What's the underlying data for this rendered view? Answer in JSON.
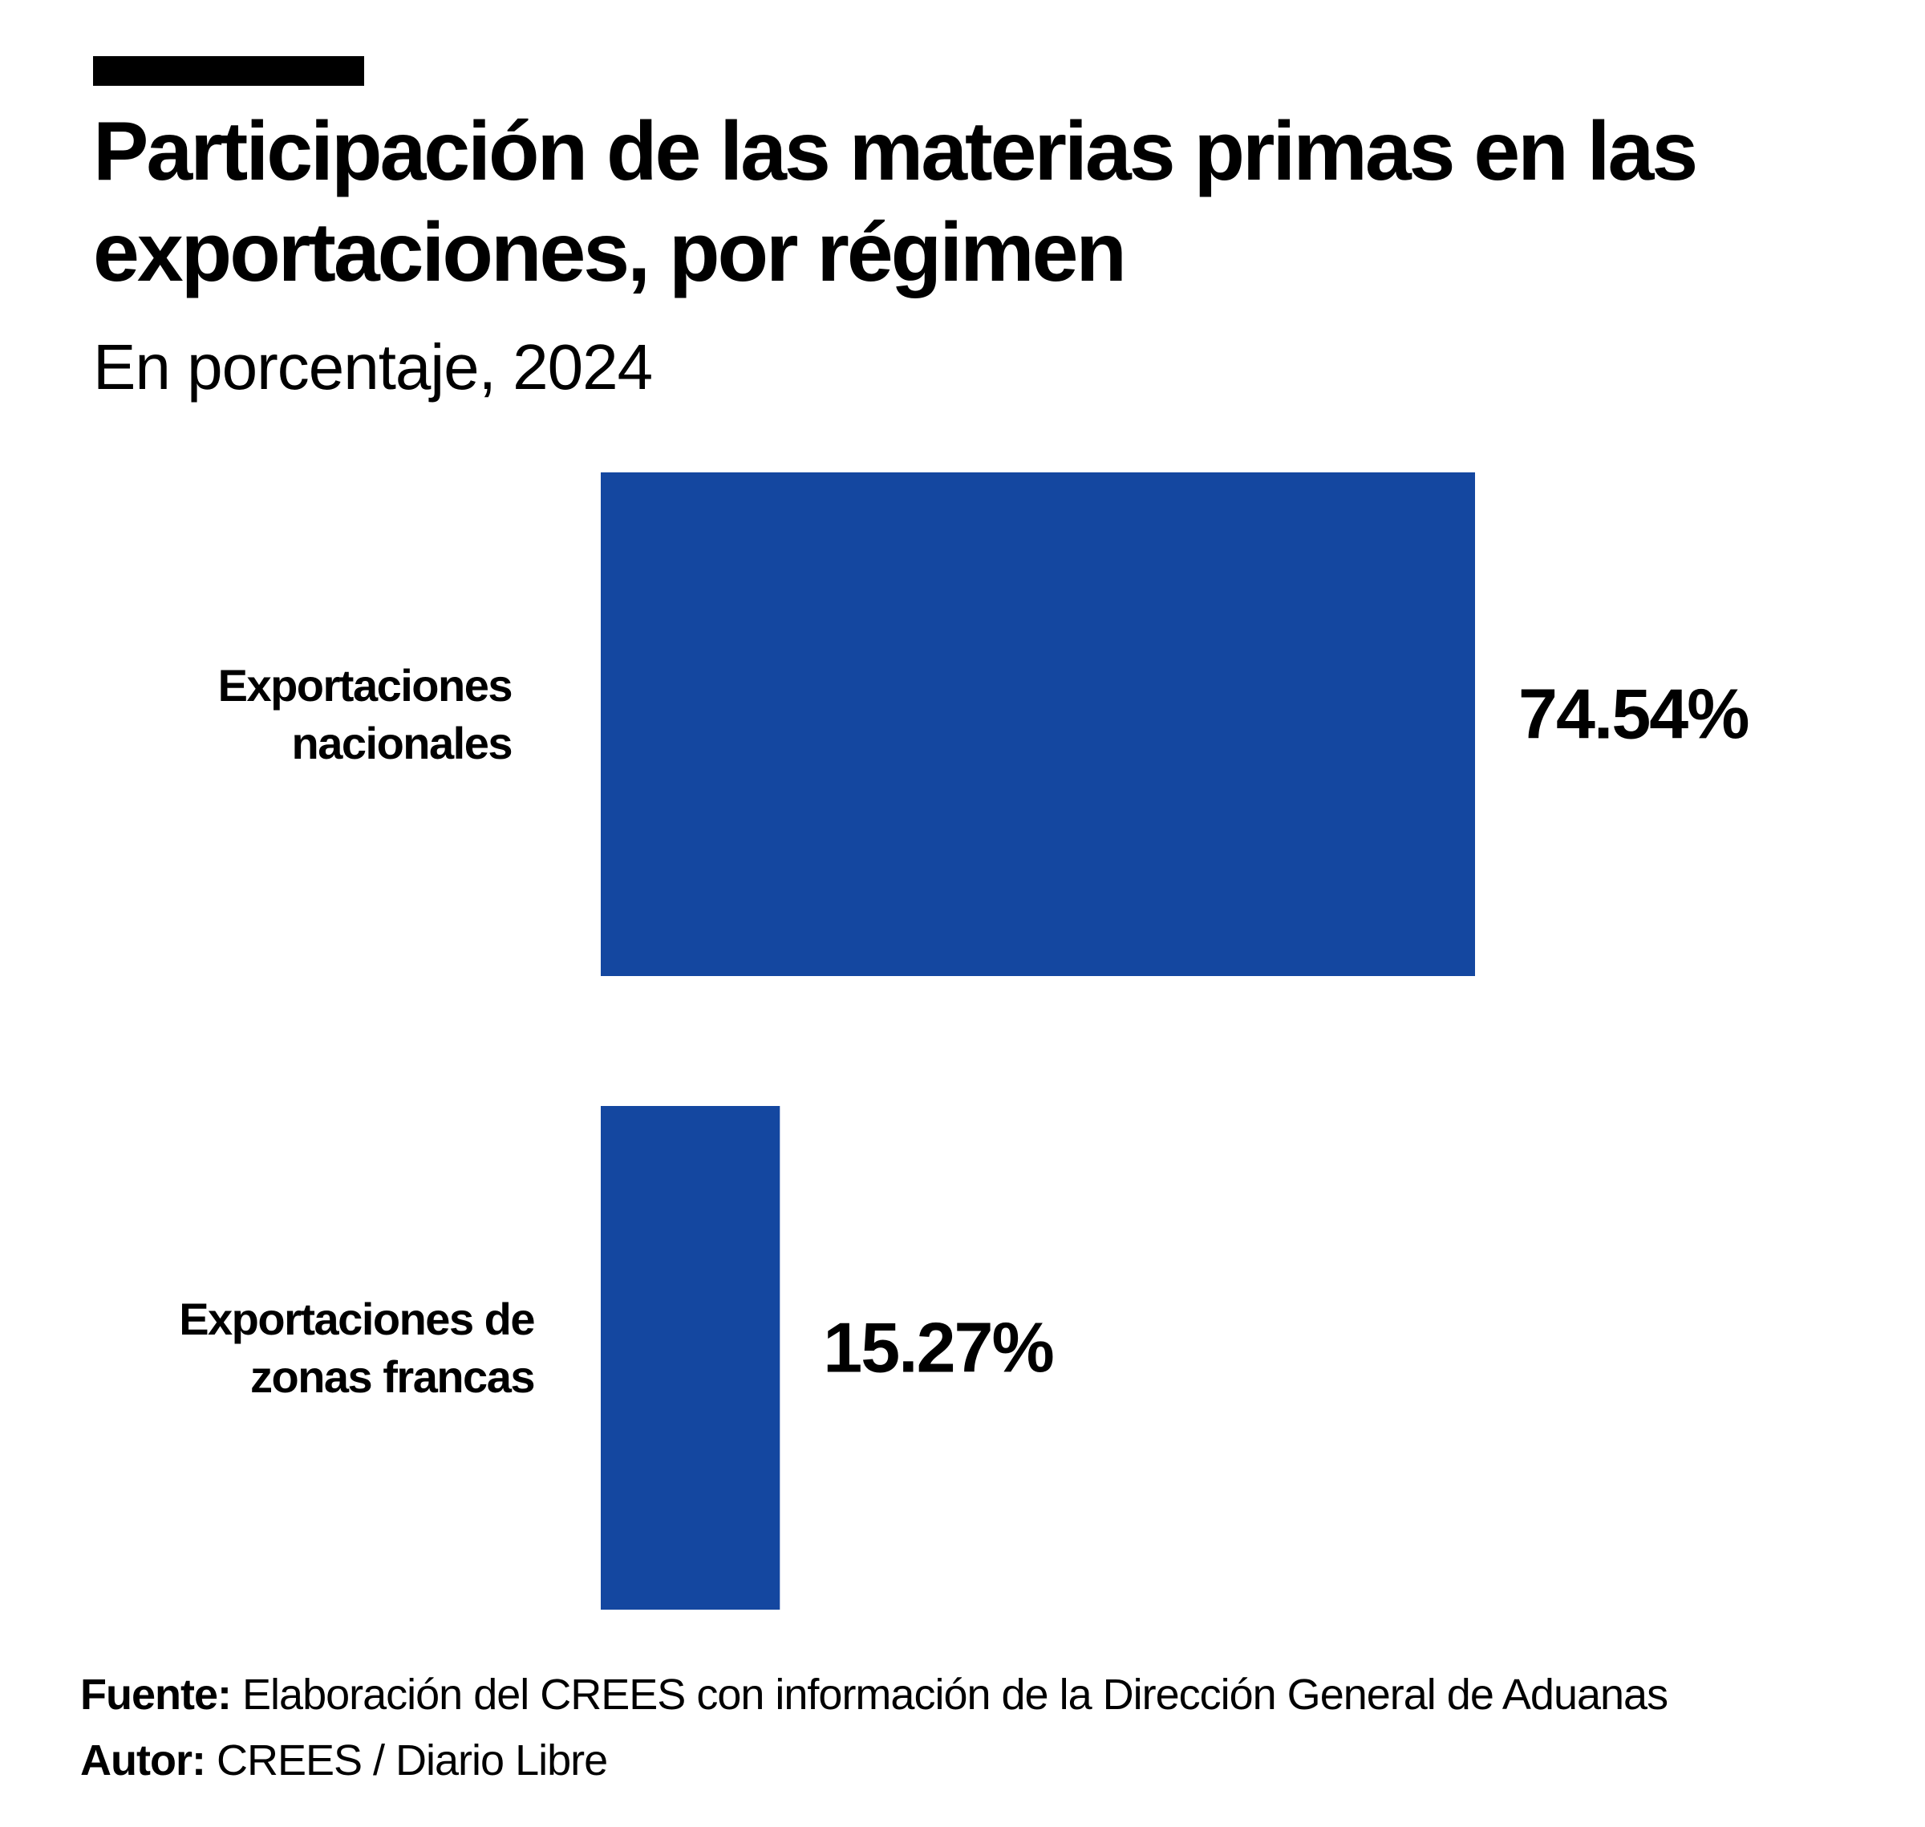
{
  "header": {
    "title": "Participación de las materias primas en las exportaciones, por régimen",
    "subtitle": "En porcentaje, 2024"
  },
  "chart_data": {
    "type": "bar",
    "orientation": "horizontal",
    "title": "Participación de las materias primas en las exportaciones, por régimen",
    "subtitle": "En porcentaje, 2024",
    "categories": [
      [
        "Exportaciones",
        "nacionales"
      ],
      [
        "Exportaciones de",
        "zonas francas"
      ]
    ],
    "values": [
      74.54,
      15.27
    ],
    "value_labels": [
      "74.54%",
      "15.27%"
    ],
    "xlim": [
      0,
      100
    ],
    "xlabel": "",
    "ylabel": "",
    "grid": false,
    "bar_color": "#1447A0"
  },
  "footer": {
    "source_label": "Fuente:",
    "source_text": "Elaboración del CREES con información de la Dirección General de Aduanas",
    "author_label": "Autor:",
    "author_text": "CREES / Diario Libre"
  }
}
